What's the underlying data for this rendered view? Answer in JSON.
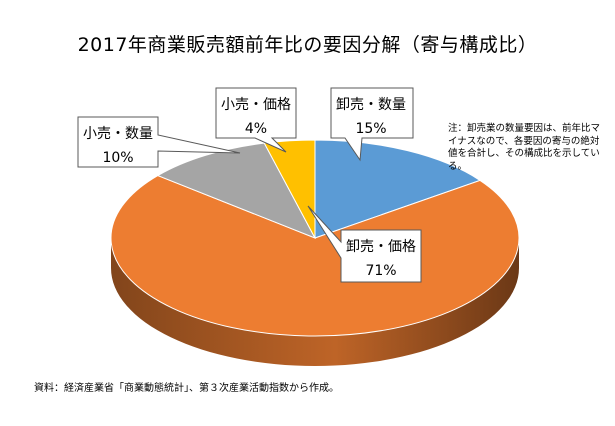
{
  "title": "2017年商業販売額前年比の要因分解（寄与構成比）",
  "chart_data": {
    "type": "pie",
    "slices": [
      {
        "label": "卸売・数量",
        "value": 15,
        "value_label": "15%",
        "color": "#5b9bd5"
      },
      {
        "label": "卸売・価格",
        "value": 71,
        "value_label": "71%",
        "color": "#ed7d31"
      },
      {
        "label": "小売・数量",
        "value": 10,
        "value_label": "10%",
        "color": "#a5a5a5"
      },
      {
        "label": "小売・価格",
        "value": 4,
        "value_label": "4%",
        "color": "#ffc000"
      }
    ]
  },
  "note": "注：卸売業の数量要因は、前年比マイナスなので、各要因の寄与の絶対値を合計し、その構成比を示している。",
  "source": "資料：経済産業省「商業動態統計」、第３次産業活動指数から作成。"
}
